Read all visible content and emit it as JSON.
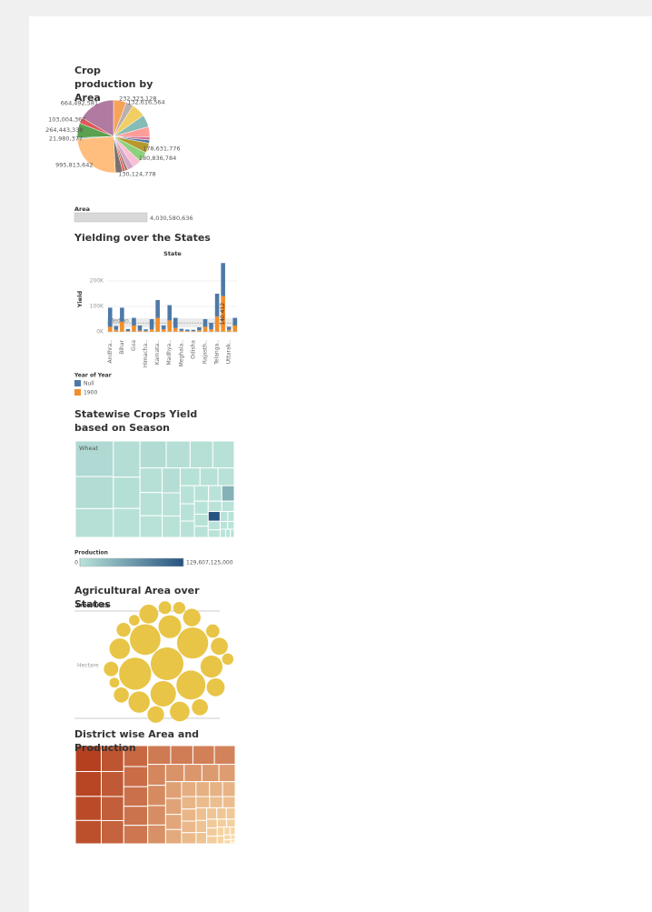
{
  "chart_data": [
    {
      "type": "pie",
      "title": "Crop production by Area",
      "values": [
        232323128,
        132616564,
        250000000,
        220000000,
        180000000,
        60000000,
        55000000,
        178631776,
        180836784,
        150000000,
        116310000,
        50000000,
        45000000,
        130124778,
        995813642,
        21980377,
        264443338,
        103004367,
        664492581
      ],
      "value_labels": [
        "232,323,128",
        "132,616,564",
        null,
        null,
        null,
        null,
        null,
        "178,631,776",
        "180,836,784",
        null,
        null,
        null,
        null,
        "130,124,778",
        "995,813,642",
        "21,980,377",
        "264,443,338",
        "103,004,367",
        "664,492,581"
      ],
      "colors": [
        "#f6a35a",
        "#bab0ac",
        "#f1ce63",
        "#86bcb6",
        "#ff9d9a",
        "#d37295",
        "#4e79a7",
        "#b6992d",
        "#8cd17d",
        "#fabfd2",
        "#d4a6c8",
        "#9d7660",
        "#e15759",
        "#79706e",
        "#ffbe7d",
        "#499894",
        "#59a14f",
        "#e15759",
        "#b07aa1"
      ],
      "size_legend": {
        "title": "Area",
        "value": 4030580636,
        "label": "4,030,580,636"
      }
    },
    {
      "type": "bar",
      "title": "Yielding over the States",
      "x_label": "State",
      "y_label": "Yield",
      "stacked": true,
      "categories": [
        "Andhra..",
        null,
        "Bihar",
        null,
        "Goa",
        null,
        "Himacha..",
        null,
        "Karnata..",
        null,
        "Madhya..",
        null,
        "Meghala..",
        null,
        "Odisha",
        null,
        "Rajasth..",
        null,
        "Telanga..",
        null,
        "Uttarak..",
        null
      ],
      "series": [
        {
          "name": "Null",
          "color": "#4e79a7",
          "values": [
            75000,
            15000,
            55000,
            8000,
            30000,
            20000,
            6000,
            40000,
            70000,
            15000,
            60000,
            40000,
            8000,
            6000,
            5000,
            12000,
            30000,
            25000,
            90000,
            130000,
            12000,
            30000
          ]
        },
        {
          "name": "1900",
          "color": "#f28e2b",
          "values": [
            20000,
            8000,
            40000,
            3000,
            25000,
            5000,
            4000,
            10000,
            55000,
            10000,
            45000,
            15000,
            4000,
            3000,
            3000,
            6000,
            20000,
            10000,
            60000,
            140412,
            8000,
            25000
          ],
          "value_labels": [
            null,
            null,
            null,
            null,
            null,
            null,
            null,
            null,
            null,
            null,
            null,
            null,
            null,
            null,
            null,
            null,
            null,
            null,
            null,
            "140,412",
            null,
            null
          ]
        }
      ],
      "ylim": [
        -18000,
        275000
      ],
      "yticks": [
        {
          "value": 0,
          "label": "0K"
        },
        {
          "value": 100000,
          "label": "100K"
        },
        {
          "value": 200000,
          "label": "200K"
        }
      ],
      "grid": true,
      "reference_line": {
        "label": "Median",
        "value": 35000
      },
      "legend_title": "Year of Year"
    },
    {
      "type": "treemap",
      "title": "Statewise Crops Yield based on Season",
      "values": [
        2100,
        1900,
        1700,
        1500,
        1300,
        1200,
        1100,
        1000,
        950,
        900,
        850,
        800,
        750,
        700,
        650,
        600,
        550,
        500,
        450,
        400,
        380,
        360,
        340,
        320,
        300,
        280,
        260,
        240,
        220,
        200,
        180,
        160,
        140,
        120,
        100,
        90,
        80,
        70,
        60,
        50
      ],
      "labels": [
        "Wheat",
        null,
        null,
        null,
        null,
        null,
        null,
        null,
        null,
        null,
        null,
        null,
        null,
        null,
        null,
        null,
        null,
        null,
        null,
        null,
        null,
        null,
        null,
        null,
        null,
        null,
        null,
        null,
        null,
        null,
        null,
        null,
        null,
        null,
        null,
        null,
        null,
        null,
        null,
        null
      ],
      "color_values": [
        9000000000,
        6000000000,
        3000000000,
        5000000000,
        4000000000,
        2000000000,
        7000000000,
        3500000000,
        2500000000,
        1500000000,
        3000000000,
        2000000000,
        1000000000,
        4500000000,
        1200000000,
        800000000,
        2200000000,
        1600000000,
        900000000,
        700000000,
        600000000,
        1100000000,
        500000000,
        400000000,
        45000000000,
        300000000,
        800000000,
        600000000,
        350000000,
        250000000,
        129607125000,
        200000000,
        150000000,
        120000000,
        100000000,
        90000000,
        80000000,
        70000000,
        60000000,
        50000000
      ],
      "color_title": "Production",
      "color_lim": [
        0,
        129607125000
      ],
      "color_ticks": [
        0,
        {
          "value": 129607125000,
          "label": "129,607,125,000"
        }
      ],
      "color_range": [
        "#b9e3d8",
        "#25527f"
      ]
    },
    {
      "type": "bubble",
      "title": "Agricultural Area over States",
      "column_header": "Area Units",
      "row_label": "Hectare",
      "color": "#e8c547",
      "values": [
        330,
        320,
        300,
        290,
        260,
        200,
        160,
        150,
        140,
        130,
        120,
        110,
        100,
        95,
        90,
        85,
        80,
        70,
        65,
        60,
        55,
        50,
        45,
        40,
        35,
        30
      ]
    },
    {
      "type": "treemap",
      "title": "District wise Area and Production",
      "values": [
        100,
        96,
        93,
        90,
        87,
        84,
        81,
        78,
        75,
        72,
        70,
        68,
        66,
        64,
        62,
        60,
        58,
        56,
        54,
        52,
        50,
        48,
        46,
        44,
        42,
        40,
        38,
        36,
        34,
        32,
        30,
        29,
        28,
        27,
        26,
        25,
        24,
        23,
        22,
        21,
        20,
        19,
        18,
        17,
        16,
        15,
        14,
        13,
        12,
        11,
        10,
        9,
        8,
        7,
        6,
        5,
        4,
        3,
        2,
        1
      ],
      "color_range": [
        "#fbe0ad",
        "#b5401f"
      ]
    }
  ]
}
